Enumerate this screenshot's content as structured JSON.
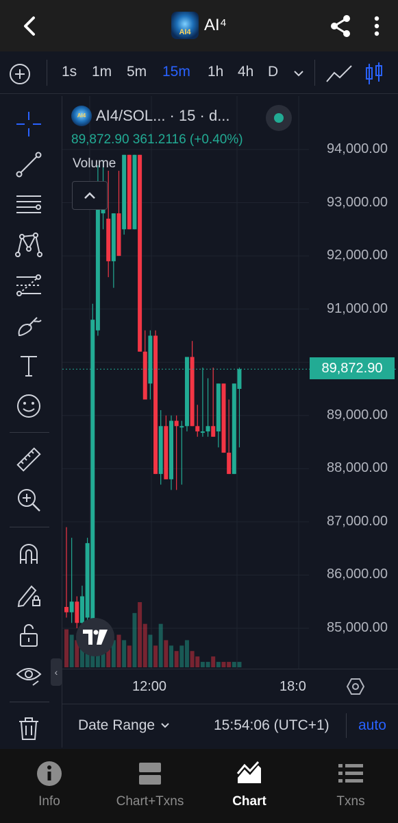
{
  "header": {
    "title": "AI⁴",
    "logo_text": "AI4",
    "back_icon": "chevron-left-icon",
    "share_icon": "share-icon",
    "more_icon": "more-vertical-icon"
  },
  "timeframes": {
    "items": [
      "1s",
      "1m",
      "5m",
      "15m",
      "1h",
      "4h",
      "D"
    ],
    "active": "15m"
  },
  "legend": {
    "symbol": "AI4/SOL...",
    "interval": " · 15 · d...",
    "ohlc_text": "89,872.90  361.2116 (+0.40%)",
    "volume_label": "Volume",
    "status_color": "#22ab94"
  },
  "price_axis": {
    "labels": [
      "94,000.00",
      "93,000.00",
      "92,000.00",
      "91,000.00",
      "89,000.00",
      "88,000.00",
      "87,000.00",
      "86,000.00",
      "85,000.00"
    ],
    "current_price": "89,872.90"
  },
  "time_axis": {
    "labels": [
      "12:00",
      "18:0"
    ]
  },
  "bottom_bar": {
    "date_range": "Date Range",
    "clock": "15:54:06 (UTC+1)",
    "auto": "auto"
  },
  "nav": {
    "items": [
      {
        "label": "Info",
        "icon": "info-icon"
      },
      {
        "label": "Chart+Txns",
        "icon": "split-view-icon"
      },
      {
        "label": "Chart",
        "icon": "chart-icon"
      },
      {
        "label": "Txns",
        "icon": "list-icon"
      }
    ],
    "active": "Chart"
  },
  "colors": {
    "up": "#22ab94",
    "down": "#f23645",
    "accent": "#2962ff",
    "background": "#131722"
  },
  "chart_data": {
    "type": "candlestick",
    "symbol": "AI4/SOL",
    "interval": "15",
    "ylim": [
      84300,
      94500
    ],
    "candles": [
      {
        "o": 85400,
        "h": 86900,
        "l": 85200,
        "c": 85300
      },
      {
        "o": 85300,
        "h": 86700,
        "l": 85100,
        "c": 85500
      },
      {
        "o": 85500,
        "h": 85600,
        "l": 85000,
        "c": 85100
      },
      {
        "o": 85100,
        "h": 85800,
        "l": 85000,
        "c": 85600
      },
      {
        "o": 85200,
        "h": 86700,
        "l": 85100,
        "c": 86600
      },
      {
        "o": 85100,
        "h": 91100,
        "l": 85000,
        "c": 90800
      },
      {
        "o": 90600,
        "h": 93700,
        "l": 90500,
        "c": 93200
      },
      {
        "o": 92800,
        "h": 93800,
        "l": 92500,
        "c": 93100
      },
      {
        "o": 92700,
        "h": 93600,
        "l": 91600,
        "c": 91900
      },
      {
        "o": 91900,
        "h": 92800,
        "l": 91400,
        "c": 92800
      },
      {
        "o": 92800,
        "h": 93600,
        "l": 92000,
        "c": 92000
      },
      {
        "o": 92500,
        "h": 93900,
        "l": 92400,
        "c": 93900
      },
      {
        "o": 93900,
        "h": 93900,
        "l": 92500,
        "c": 92500
      },
      {
        "o": 92500,
        "h": 93900,
        "l": 92500,
        "c": 93900
      },
      {
        "o": 93900,
        "h": 93900,
        "l": 90200,
        "c": 90200
      },
      {
        "o": 90200,
        "h": 90600,
        "l": 89300,
        "c": 89300
      },
      {
        "o": 89600,
        "h": 90600,
        "l": 89300,
        "c": 90500
      },
      {
        "o": 90500,
        "h": 90600,
        "l": 87900,
        "c": 87900
      },
      {
        "o": 87900,
        "h": 89100,
        "l": 87700,
        "c": 88800
      },
      {
        "o": 88800,
        "h": 89000,
        "l": 87800,
        "c": 87800
      },
      {
        "o": 87800,
        "h": 89000,
        "l": 87600,
        "c": 88900
      },
      {
        "o": 88900,
        "h": 89000,
        "l": 87600,
        "c": 88800
      },
      {
        "o": 88800,
        "h": 88900,
        "l": 87700,
        "c": 88800
      },
      {
        "o": 88800,
        "h": 90100,
        "l": 88700,
        "c": 90100
      },
      {
        "o": 90100,
        "h": 90400,
        "l": 88800,
        "c": 88800
      },
      {
        "o": 88800,
        "h": 89200,
        "l": 88600,
        "c": 88700
      },
      {
        "o": 88700,
        "h": 89900,
        "l": 88600,
        "c": 88700
      },
      {
        "o": 88700,
        "h": 89700,
        "l": 88600,
        "c": 88800
      },
      {
        "o": 88800,
        "h": 89900,
        "l": 88600,
        "c": 88600
      },
      {
        "o": 88700,
        "h": 89600,
        "l": 88400,
        "c": 89600
      },
      {
        "o": 89600,
        "h": 89600,
        "l": 88300,
        "c": 88300
      },
      {
        "o": 88300,
        "h": 89300,
        "l": 87900,
        "c": 87900
      },
      {
        "o": 87900,
        "h": 89600,
        "l": 87900,
        "c": 89600
      },
      {
        "o": 89500,
        "h": 89900,
        "l": 88400,
        "c": 89870
      }
    ],
    "volume": [
      7,
      6,
      5,
      4,
      6,
      7,
      5,
      4,
      5,
      5,
      6,
      5,
      4,
      10,
      12,
      8,
      6,
      4,
      8,
      5,
      4,
      3,
      4,
      5,
      3,
      2,
      1,
      1,
      2,
      1,
      1,
      1,
      1,
      1
    ]
  }
}
